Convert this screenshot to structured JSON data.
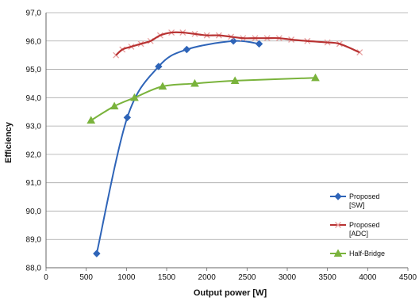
{
  "chart_data": {
    "type": "line",
    "title": "",
    "xlabel": "Output power [W]",
    "ylabel": "Efficiency",
    "xlim": [
      0,
      4500
    ],
    "ylim": [
      88.0,
      97.0
    ],
    "x_ticks": [
      0,
      500,
      1000,
      1500,
      2000,
      2500,
      3000,
      3500,
      4000,
      4500
    ],
    "y_ticks": [
      88.0,
      89.0,
      90.0,
      91.0,
      92.0,
      93.0,
      94.0,
      95.0,
      96.0,
      97.0
    ],
    "x_tick_labels": [
      "0",
      "500",
      "1000",
      "1500",
      "2000",
      "2500",
      "3000",
      "3500",
      "4000",
      "4500"
    ],
    "y_tick_labels": [
      "88,0",
      "89,0",
      "90,0",
      "91,0",
      "92,0",
      "93,0",
      "94,0",
      "95,0",
      "96,0",
      "97,0"
    ],
    "grid": "horizontal",
    "legend_position": "bottom-right",
    "series": [
      {
        "name": "Proposed [SW]",
        "legend_lines": [
          "Proposed",
          "[SW]"
        ],
        "color": "#2e64b8",
        "marker": "diamond",
        "x": [
          630,
          1010,
          1400,
          1750,
          2330,
          2650
        ],
        "y": [
          88.5,
          93.3,
          95.1,
          95.7,
          96.0,
          95.9
        ]
      },
      {
        "name": "Proposed [ADC]",
        "legend_lines": [
          "Proposed",
          "[ADC]"
        ],
        "color": "#b83232",
        "marker": "x",
        "x": [
          870,
          950,
          1060,
          1180,
          1300,
          1420,
          1560,
          1700,
          1850,
          2000,
          2150,
          2300,
          2450,
          2600,
          2750,
          2900,
          3050,
          3250,
          3500,
          3650,
          3900
        ],
        "y": [
          95.5,
          95.7,
          95.8,
          95.9,
          96.0,
          96.2,
          96.3,
          96.3,
          96.25,
          96.2,
          96.2,
          96.15,
          96.1,
          96.1,
          96.1,
          96.1,
          96.05,
          96.0,
          95.95,
          95.9,
          95.6
        ]
      },
      {
        "name": "Half-Bridge",
        "legend_lines": [
          "Half-Bridge"
        ],
        "color": "#7ab33c",
        "marker": "triangle",
        "x": [
          560,
          850,
          1100,
          1450,
          1850,
          2350,
          3350
        ],
        "y": [
          93.2,
          93.7,
          94.0,
          94.4,
          94.5,
          94.6,
          94.7
        ]
      }
    ]
  }
}
